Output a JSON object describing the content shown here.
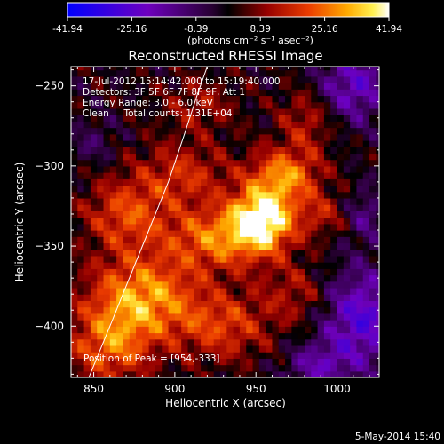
{
  "chart_data": {
    "type": "heatmap",
    "title": "Reconstructed RHESSI Image",
    "xlabel": "Heliocentric X (arcsec)",
    "ylabel": "Heliocentric Y (arcsec)",
    "xlim": [
      836,
      1026
    ],
    "ylim": [
      -432,
      -238
    ],
    "x_ticks": [
      850,
      900,
      950,
      1000
    ],
    "y_ticks": [
      -250,
      -300,
      -350,
      -400
    ],
    "colorbar": {
      "ticks": [
        "-41.94",
        "-25.16",
        "-8.39",
        "8.39",
        "25.16",
        "41.94"
      ],
      "unit_label": "(photons cm⁻² s⁻¹ asec⁻²)",
      "range": [
        -41.94,
        41.94
      ]
    },
    "info_lines": [
      "17-Jul-2012 15:14:42.000 to 15:19:40.000",
      "Detectors: 3F 5F 6F 7F 8F 9F, Att 1",
      "Energy Range: 3.0 - 6.0 keV",
      "Clean     Total counts: 1.31E+04"
    ],
    "peak_label": "Position of Peak = [954,-333]",
    "peak": [
      954,
      -333
    ],
    "limb_curve": [
      [
        847,
        -432
      ],
      [
        860,
        -400
      ],
      [
        872,
        -370
      ],
      [
        884,
        -340
      ],
      [
        896,
        -310
      ],
      [
        906,
        -280
      ],
      [
        914,
        -255
      ],
      [
        920,
        -238
      ]
    ],
    "bright_regions": [
      {
        "x": 954,
        "y": -333,
        "sx": 14,
        "sy": 14,
        "amp": 41.9
      },
      {
        "x": 968,
        "y": -305,
        "sx": 15,
        "sy": 12,
        "amp": 26
      },
      {
        "x": 925,
        "y": -345,
        "sx": 22,
        "sy": 14,
        "amp": 24
      },
      {
        "x": 880,
        "y": -382,
        "sx": 24,
        "sy": 18,
        "amp": 30
      },
      {
        "x": 870,
        "y": -330,
        "sx": 18,
        "sy": 16,
        "amp": 20
      },
      {
        "x": 860,
        "y": -413,
        "sx": 18,
        "sy": 16,
        "amp": 22
      },
      {
        "x": 905,
        "y": -305,
        "sx": 20,
        "sy": 14,
        "amp": 16
      },
      {
        "x": 982,
        "y": -270,
        "sx": 12,
        "sy": 14,
        "amp": 14
      },
      {
        "x": 990,
        "y": -330,
        "sx": 10,
        "sy": 10,
        "amp": 12
      },
      {
        "x": 930,
        "y": -400,
        "sx": 20,
        "sy": 15,
        "amp": 18
      },
      {
        "x": 975,
        "y": -380,
        "sx": 16,
        "sy": 14,
        "amp": 12
      },
      {
        "x": 915,
        "y": -262,
        "sx": 16,
        "sy": 12,
        "amp": 11
      }
    ],
    "dark_regions": [
      {
        "x": 1010,
        "y": -250,
        "sx": 16,
        "sy": 16,
        "amp": -22
      },
      {
        "x": 1015,
        "y": -395,
        "sx": 18,
        "sy": 22,
        "amp": -26
      },
      {
        "x": 988,
        "y": -425,
        "sx": 14,
        "sy": 10,
        "amp": -16
      },
      {
        "x": 1018,
        "y": -330,
        "sx": 8,
        "sy": 12,
        "amp": -12
      },
      {
        "x": 850,
        "y": -285,
        "sx": 10,
        "sy": 10,
        "amp": -8
      }
    ]
  },
  "timestamp": "5-May-2014 15:40"
}
